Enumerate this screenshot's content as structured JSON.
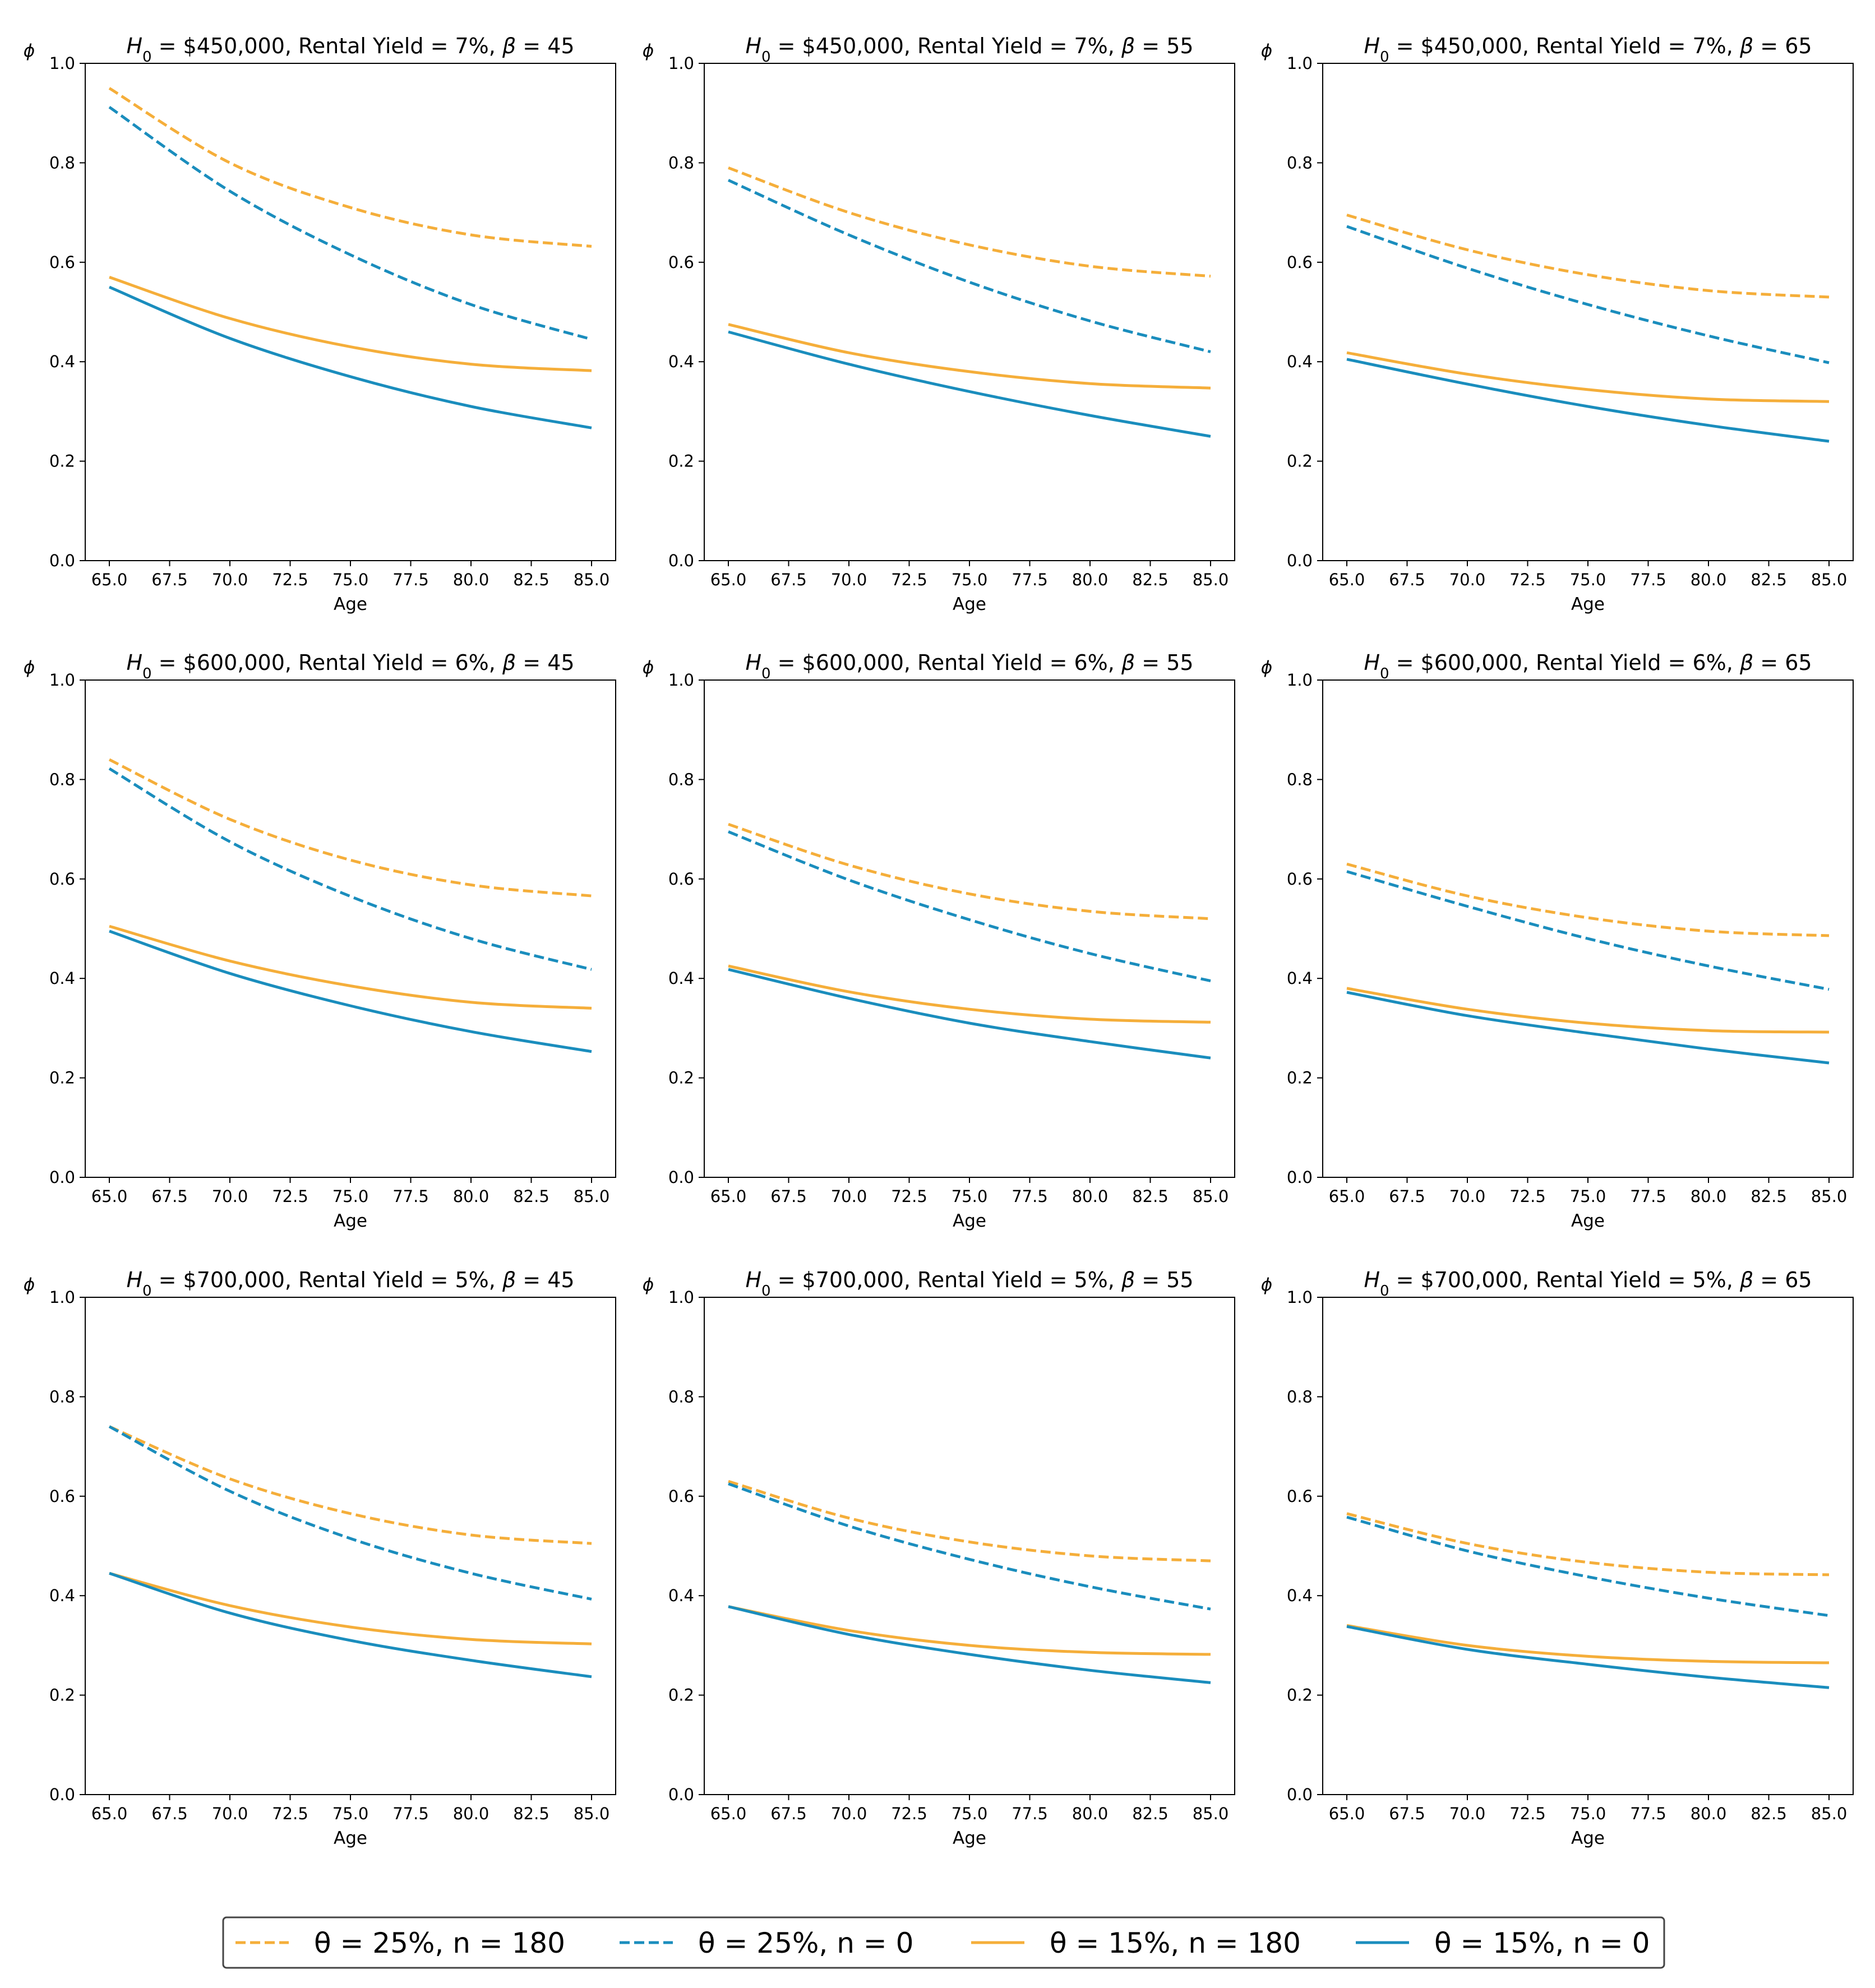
{
  "colors": {
    "orange": "#f5ae3a",
    "blue": "#1a8dbd",
    "axis": "#000000",
    "legendFrame": "#444444"
  },
  "legend": [
    {
      "label": "θ = 25%, n = 180",
      "color": "#f5ae3a",
      "style": "dashed"
    },
    {
      "label": "θ = 25%, n = 0",
      "color": "#1a8dbd",
      "style": "dashed"
    },
    {
      "label": "θ = 15%, n = 180",
      "color": "#f5ae3a",
      "style": "solid"
    },
    {
      "label": "θ = 15%, n = 0",
      "color": "#1a8dbd",
      "style": "solid"
    }
  ],
  "chart_data": [
    {
      "type": "line",
      "title": "H0 = $450,000, Rental Yield = 7%, β = 45",
      "title_parts": [
        "H",
        "0",
        " = $450,000, Rental Yield = 7%, ",
        "β",
        " = 45"
      ],
      "xlabel": "Age",
      "ylabel": "ϕ",
      "xlim": [
        64,
        86
      ],
      "ylim": [
        0,
        1.0
      ],
      "x": [
        65,
        70,
        75,
        80,
        85
      ],
      "xticks": [
        "65.0",
        "67.5",
        "70.0",
        "72.5",
        "75.0",
        "77.5",
        "80.0",
        "82.5",
        "85.0"
      ],
      "yticks": [
        "0.0",
        "0.2",
        "0.4",
        "0.6",
        "0.8",
        "1.0"
      ],
      "series": [
        {
          "name": "θ = 25%, n = 180",
          "values": [
            0.95,
            0.8,
            0.71,
            0.655,
            0.632
          ]
        },
        {
          "name": "θ = 25%, n = 0",
          "values": [
            0.912,
            0.743,
            0.615,
            0.515,
            0.445
          ]
        },
        {
          "name": "θ = 15%, n = 180",
          "values": [
            0.57,
            0.487,
            0.43,
            0.395,
            0.382
          ]
        },
        {
          "name": "θ = 15%, n = 0",
          "values": [
            0.55,
            0.447,
            0.37,
            0.31,
            0.267
          ]
        }
      ]
    },
    {
      "type": "line",
      "title": "H0 = $450,000, Rental Yield = 7%, β = 55",
      "title_parts": [
        "H",
        "0",
        " = $450,000, Rental Yield = 7%, ",
        "β",
        " = 55"
      ],
      "xlabel": "Age",
      "ylabel": "ϕ",
      "xlim": [
        64,
        86
      ],
      "ylim": [
        0,
        1.0
      ],
      "x": [
        65,
        70,
        75,
        80,
        85
      ],
      "xticks": [
        "65.0",
        "67.5",
        "70.0",
        "72.5",
        "75.0",
        "77.5",
        "80.0",
        "82.5",
        "85.0"
      ],
      "yticks": [
        "0.0",
        "0.2",
        "0.4",
        "0.6",
        "0.8",
        "1.0"
      ],
      "series": [
        {
          "name": "θ = 25%, n = 180",
          "values": [
            0.79,
            0.7,
            0.635,
            0.592,
            0.572
          ]
        },
        {
          "name": "θ = 25%, n = 0",
          "values": [
            0.765,
            0.655,
            0.56,
            0.482,
            0.42
          ]
        },
        {
          "name": "θ = 15%, n = 180",
          "values": [
            0.475,
            0.418,
            0.38,
            0.356,
            0.347
          ]
        },
        {
          "name": "θ = 15%, n = 0",
          "values": [
            0.46,
            0.395,
            0.34,
            0.292,
            0.25
          ]
        }
      ]
    },
    {
      "type": "line",
      "title": "H0 = $450,000, Rental Yield = 7%, β = 65",
      "title_parts": [
        "H",
        "0",
        " = $450,000, Rental Yield = 7%, ",
        "β",
        " = 65"
      ],
      "xlabel": "Age",
      "ylabel": "ϕ",
      "xlim": [
        64,
        86
      ],
      "ylim": [
        0,
        1.0
      ],
      "x": [
        65,
        70,
        75,
        80,
        85
      ],
      "xticks": [
        "65.0",
        "67.5",
        "70.0",
        "72.5",
        "75.0",
        "77.5",
        "80.0",
        "82.5",
        "85.0"
      ],
      "yticks": [
        "0.0",
        "0.2",
        "0.4",
        "0.6",
        "0.8",
        "1.0"
      ],
      "series": [
        {
          "name": "θ = 25%, n = 180",
          "values": [
            0.695,
            0.625,
            0.575,
            0.543,
            0.53
          ]
        },
        {
          "name": "θ = 25%, n = 0",
          "values": [
            0.672,
            0.588,
            0.515,
            0.452,
            0.398
          ]
        },
        {
          "name": "θ = 15%, n = 180",
          "values": [
            0.418,
            0.375,
            0.344,
            0.325,
            0.32
          ]
        },
        {
          "name": "θ = 15%, n = 0",
          "values": [
            0.405,
            0.355,
            0.31,
            0.272,
            0.24
          ]
        }
      ]
    },
    {
      "type": "line",
      "title": "H0 = $600,000, Rental Yield = 6%, β = 45",
      "title_parts": [
        "H",
        "0",
        " = $600,000, Rental Yield = 6%, ",
        "β",
        " = 45"
      ],
      "xlabel": "Age",
      "ylabel": "ϕ",
      "xlim": [
        64,
        86
      ],
      "ylim": [
        0,
        1.0
      ],
      "x": [
        65,
        70,
        75,
        80,
        85
      ],
      "xticks": [
        "65.0",
        "67.5",
        "70.0",
        "72.5",
        "75.0",
        "77.5",
        "80.0",
        "82.5",
        "85.0"
      ],
      "yticks": [
        "0.0",
        "0.2",
        "0.4",
        "0.6",
        "0.8",
        "1.0"
      ],
      "series": [
        {
          "name": "θ = 25%, n = 180",
          "values": [
            0.84,
            0.72,
            0.638,
            0.588,
            0.566
          ]
        },
        {
          "name": "θ = 25%, n = 0",
          "values": [
            0.822,
            0.675,
            0.565,
            0.48,
            0.418
          ]
        },
        {
          "name": "θ = 15%, n = 180",
          "values": [
            0.505,
            0.435,
            0.385,
            0.352,
            0.34
          ]
        },
        {
          "name": "θ = 15%, n = 0",
          "values": [
            0.495,
            0.41,
            0.345,
            0.293,
            0.253
          ]
        }
      ]
    },
    {
      "type": "line",
      "title": "H0 = $600,000, Rental Yield = 6%, β = 55",
      "title_parts": [
        "H",
        "0",
        " = $600,000, Rental Yield = 6%, ",
        "β",
        " = 55"
      ],
      "xlabel": "Age",
      "ylabel": "ϕ",
      "xlim": [
        64,
        86
      ],
      "ylim": [
        0,
        1.0
      ],
      "x": [
        65,
        70,
        75,
        80,
        85
      ],
      "xticks": [
        "65.0",
        "67.5",
        "70.0",
        "72.5",
        "75.0",
        "77.5",
        "80.0",
        "82.5",
        "85.0"
      ],
      "yticks": [
        "0.0",
        "0.2",
        "0.4",
        "0.6",
        "0.8",
        "1.0"
      ],
      "series": [
        {
          "name": "θ = 25%, n = 180",
          "values": [
            0.71,
            0.628,
            0.57,
            0.535,
            0.52
          ]
        },
        {
          "name": "θ = 25%, n = 0",
          "values": [
            0.695,
            0.598,
            0.518,
            0.45,
            0.395
          ]
        },
        {
          "name": "θ = 15%, n = 180",
          "values": [
            0.425,
            0.373,
            0.338,
            0.318,
            0.312
          ]
        },
        {
          "name": "θ = 15%, n = 0",
          "values": [
            0.418,
            0.36,
            0.31,
            0.273,
            0.24
          ]
        }
      ]
    },
    {
      "type": "line",
      "title": "H0 = $600,000, Rental Yield = 6%, β = 65",
      "title_parts": [
        "H",
        "0",
        " = $600,000, Rental Yield = 6%, ",
        "β",
        " = 65"
      ],
      "xlabel": "Age",
      "ylabel": "ϕ",
      "xlim": [
        64,
        86
      ],
      "ylim": [
        0,
        1.0
      ],
      "x": [
        65,
        70,
        75,
        80,
        85
      ],
      "xticks": [
        "65.0",
        "67.5",
        "70.0",
        "72.5",
        "75.0",
        "77.5",
        "80.0",
        "82.5",
        "85.0"
      ],
      "yticks": [
        "0.0",
        "0.2",
        "0.4",
        "0.6",
        "0.8",
        "1.0"
      ],
      "series": [
        {
          "name": "θ = 25%, n = 180",
          "values": [
            0.63,
            0.566,
            0.522,
            0.495,
            0.486
          ]
        },
        {
          "name": "θ = 25%, n = 0",
          "values": [
            0.615,
            0.545,
            0.48,
            0.425,
            0.378
          ]
        },
        {
          "name": "θ = 15%, n = 180",
          "values": [
            0.38,
            0.338,
            0.31,
            0.295,
            0.292
          ]
        },
        {
          "name": "θ = 15%, n = 0",
          "values": [
            0.372,
            0.325,
            0.29,
            0.258,
            0.23
          ]
        }
      ]
    },
    {
      "type": "line",
      "title": "H0 = $700,000, Rental Yield = 5%, β = 45",
      "title_parts": [
        "H",
        "0",
        " = $700,000, Rental Yield = 5%, ",
        "β",
        " = 45"
      ],
      "xlabel": "Age",
      "ylabel": "ϕ",
      "xlim": [
        64,
        86
      ],
      "ylim": [
        0,
        1.0
      ],
      "x": [
        65,
        70,
        75,
        80,
        85
      ],
      "xticks": [
        "65.0",
        "67.5",
        "70.0",
        "72.5",
        "75.0",
        "77.5",
        "80.0",
        "82.5",
        "85.0"
      ],
      "yticks": [
        "0.0",
        "0.2",
        "0.4",
        "0.6",
        "0.8",
        "1.0"
      ],
      "series": [
        {
          "name": "θ = 25%, n = 180",
          "values": [
            0.74,
            0.635,
            0.565,
            0.522,
            0.505
          ]
        },
        {
          "name": "θ = 25%, n = 0",
          "values": [
            0.74,
            0.61,
            0.515,
            0.445,
            0.393
          ]
        },
        {
          "name": "θ = 15%, n = 180",
          "values": [
            0.445,
            0.38,
            0.337,
            0.312,
            0.303
          ]
        },
        {
          "name": "θ = 15%, n = 0",
          "values": [
            0.445,
            0.365,
            0.31,
            0.27,
            0.237
          ]
        }
      ]
    },
    {
      "type": "line",
      "title": "H0 = $700,000, Rental Yield = 5%, β = 55",
      "title_parts": [
        "H",
        "0",
        " = $700,000, Rental Yield = 5%, ",
        "β",
        " = 55"
      ],
      "xlabel": "Age",
      "ylabel": "ϕ",
      "xlim": [
        64,
        86
      ],
      "ylim": [
        0,
        1.0
      ],
      "x": [
        65,
        70,
        75,
        80,
        85
      ],
      "xticks": [
        "65.0",
        "67.5",
        "70.0",
        "72.5",
        "75.0",
        "77.5",
        "80.0",
        "82.5",
        "85.0"
      ],
      "yticks": [
        "0.0",
        "0.2",
        "0.4",
        "0.6",
        "0.8",
        "1.0"
      ],
      "series": [
        {
          "name": "θ = 25%, n = 180",
          "values": [
            0.63,
            0.556,
            0.508,
            0.48,
            0.47
          ]
        },
        {
          "name": "θ = 25%, n = 0",
          "values": [
            0.625,
            0.54,
            0.473,
            0.418,
            0.373
          ]
        },
        {
          "name": "θ = 15%, n = 180",
          "values": [
            0.378,
            0.33,
            0.3,
            0.286,
            0.282
          ]
        },
        {
          "name": "θ = 15%, n = 0",
          "values": [
            0.378,
            0.322,
            0.282,
            0.25,
            0.225
          ]
        }
      ]
    },
    {
      "type": "line",
      "title": "H0 = $700,000, Rental Yield = 5%, β = 65",
      "title_parts": [
        "H",
        "0",
        " = $700,000, Rental Yield = 5%, ",
        "β",
        " = 65"
      ],
      "xlabel": "Age",
      "ylabel": "ϕ",
      "xlim": [
        64,
        86
      ],
      "ylim": [
        0,
        1.0
      ],
      "x": [
        65,
        70,
        75,
        80,
        85
      ],
      "xticks": [
        "65.0",
        "67.5",
        "70.0",
        "72.5",
        "75.0",
        "77.5",
        "80.0",
        "82.5",
        "85.0"
      ],
      "yticks": [
        "0.0",
        "0.2",
        "0.4",
        "0.6",
        "0.8",
        "1.0"
      ],
      "series": [
        {
          "name": "θ = 25%, n = 180",
          "values": [
            0.565,
            0.505,
            0.467,
            0.447,
            0.442
          ]
        },
        {
          "name": "θ = 25%, n = 0",
          "values": [
            0.558,
            0.49,
            0.438,
            0.395,
            0.36
          ]
        },
        {
          "name": "θ = 15%, n = 180",
          "values": [
            0.34,
            0.3,
            0.278,
            0.268,
            0.265
          ]
        },
        {
          "name": "θ = 15%, n = 0",
          "values": [
            0.338,
            0.292,
            0.262,
            0.236,
            0.215
          ]
        }
      ]
    }
  ]
}
